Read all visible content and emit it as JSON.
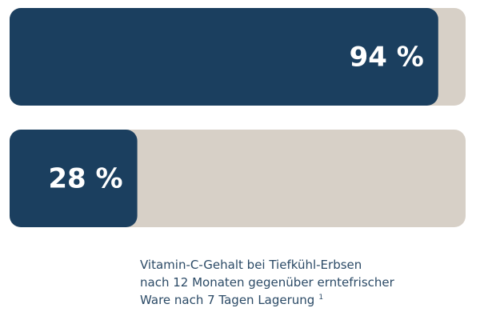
{
  "chart_data": {
    "type": "bar",
    "orientation": "horizontal",
    "categories": [
      null,
      null
    ],
    "values": [
      94,
      28
    ],
    "value_labels": [
      "94 %",
      "28 %"
    ],
    "xlim": [
      0,
      100
    ],
    "color": "#1b3f5f",
    "track_color": "#d7d0c7",
    "caption_lines": [
      "Vitamin-C-Gehalt bei Tiefkühl-Erbsen",
      "nach 12 Monaten gegenüber erntefrischer",
      "Ware nach 7 Tagen Lagerung"
    ],
    "caption_marker": "1"
  }
}
